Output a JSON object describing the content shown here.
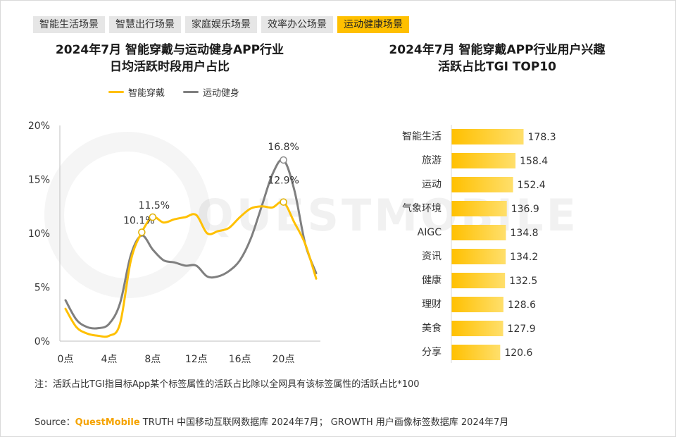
{
  "tabs": [
    {
      "label": "智能生活场景",
      "active": false
    },
    {
      "label": "智慧出行场景",
      "active": false
    },
    {
      "label": "家庭娱乐场景",
      "active": false
    },
    {
      "label": "效率办公场景",
      "active": false
    },
    {
      "label": "运动健康场景",
      "active": true
    }
  ],
  "left_title_line1": "2024年7月 智能穿戴与运动健身APP行业",
  "left_title_line2": "日均活跃时段用户占比",
  "right_title_line1": "2024年7月 智能穿戴APP行业用户兴趣",
  "right_title_line2": "活跃占比TGI TOP10",
  "watermark": "QUESTMOBILE",
  "note": "注：活跃占比TGI指目标App某个标签属性的活跃占比除以全网具有该标签属性的活跃占比*100",
  "source": {
    "prefix": "Source：",
    "brand": "QuestMobile",
    "rest": " TRUTH 中国移动互联网数据库 2024年7月； GROWTH 用户画像标签数据库 2024年7月"
  },
  "colors": {
    "yellow": "#ffc000",
    "gray": "#7f7f7f",
    "bar_start": "#ffc000",
    "bar_end": "#ffdf6b",
    "active_tab": "#ffc000"
  },
  "chart_data": [
    {
      "type": "line",
      "x_hours": [
        0,
        1,
        2,
        3,
        4,
        5,
        6,
        7,
        8,
        9,
        10,
        11,
        12,
        13,
        14,
        15,
        16,
        17,
        18,
        19,
        20,
        21,
        22,
        23
      ],
      "x_ticks": [
        "0点",
        "4点",
        "8点",
        "12点",
        "16点",
        "20点"
      ],
      "x_tick_hours": [
        0,
        4,
        8,
        12,
        16,
        20
      ],
      "y_ticks": [
        "0%",
        "5%",
        "10%",
        "15%",
        "20%"
      ],
      "y_tick_values": [
        0,
        5,
        10,
        15,
        20
      ],
      "ylim": [
        0,
        20
      ],
      "series": [
        {
          "name": "智能穿戴",
          "color": "#ffc000",
          "values": [
            3.0,
            1.3,
            0.7,
            0.5,
            0.5,
            1.6,
            7.5,
            10.1,
            11.5,
            11.0,
            11.3,
            11.5,
            11.7,
            10.0,
            10.2,
            10.5,
            11.5,
            12.3,
            12.5,
            12.4,
            12.9,
            11.0,
            9.0,
            5.8
          ],
          "annotations": [
            {
              "hour": 7,
              "value": 10.1,
              "label": "10.1%"
            },
            {
              "hour": 8,
              "value": 11.5,
              "label": "11.5%"
            },
            {
              "hour": 20,
              "value": 12.9,
              "label": "12.9%"
            }
          ]
        },
        {
          "name": "运动健身",
          "color": "#7f7f7f",
          "values": [
            3.8,
            2.0,
            1.3,
            1.2,
            1.6,
            3.5,
            8.0,
            9.8,
            8.5,
            7.5,
            7.3,
            7.0,
            7.0,
            6.0,
            6.0,
            6.5,
            7.5,
            9.5,
            12.5,
            15.5,
            16.8,
            14.0,
            9.0,
            6.3
          ],
          "annotations": [
            {
              "hour": 20,
              "value": 16.8,
              "label": "16.8%"
            }
          ]
        }
      ]
    },
    {
      "type": "bar",
      "orientation": "horizontal",
      "categories": [
        "智能生活",
        "旅游",
        "运动",
        "气象环境",
        "AIGC",
        "资讯",
        "健康",
        "理财",
        "美食",
        "分享"
      ],
      "values": [
        178.3,
        158.4,
        152.4,
        136.9,
        134.8,
        134.2,
        132.5,
        128.6,
        127.9,
        120.6
      ],
      "value_labels": [
        "178.3",
        "158.4",
        "152.4",
        "136.9",
        "134.8",
        "134.2",
        "132.5",
        "128.6",
        "127.9",
        "120.6"
      ]
    }
  ]
}
